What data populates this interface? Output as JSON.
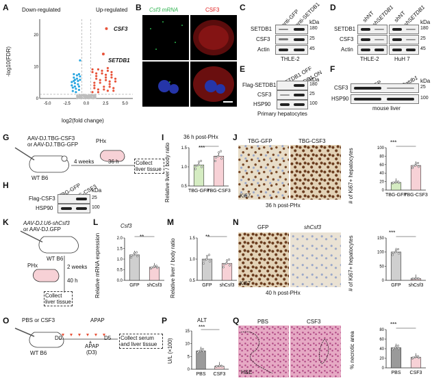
{
  "panels": [
    "A",
    "B",
    "C",
    "D",
    "E",
    "F",
    "G",
    "H",
    "I",
    "J",
    "K",
    "L",
    "M",
    "N",
    "O",
    "P",
    "Q"
  ],
  "A": {
    "down_label": "Down-regulated",
    "up_label": "Up-regulated",
    "ylabel": "-log10(FDR)",
    "xlabel": "log2(fold change)",
    "xticks": [
      "-5.0",
      "-2.5",
      "0.0",
      "2.5",
      "5.0"
    ],
    "yticks": [
      "0",
      "10",
      "20"
    ],
    "hits": [
      "CSF3",
      "SETDB1"
    ],
    "up_color": "#e8533a",
    "down_color": "#2aa6e0",
    "ns_color": "#bdbdbd"
  },
  "B": {
    "green_label": "Csf3 mRNA",
    "red_label": "CSF3",
    "green_color": "#2bb24c",
    "red_color": "#e21d1d"
  },
  "C": {
    "lanes": [
      "lenti-GFP",
      "lenti-SETDB1"
    ],
    "rows": [
      "SETDB1",
      "CSF3",
      "Actin"
    ],
    "kda_header": "kDa",
    "kda": [
      "180",
      "25",
      "45"
    ],
    "cell": "THLE-2"
  },
  "D": {
    "lanes": [
      "shNT",
      "shSETDB1",
      "shNT",
      "shSETDB1"
    ],
    "rows": [
      "SETDB1",
      "CSF3",
      "Actin"
    ],
    "kda_header": "kDa",
    "kda": [
      "180",
      "25",
      "45"
    ],
    "cells": [
      "THLE-2",
      "HuH 7"
    ]
  },
  "E": {
    "lanes": [
      "SETDB1 OFF",
      "SETDB1 ON"
    ],
    "rows": [
      "Flag-SETDB1",
      "CSF3",
      "HSP90"
    ],
    "kda_header": "kDa",
    "kda": [
      "180",
      "25",
      "100"
    ],
    "caption": "Primary hepatocytes"
  },
  "F": {
    "lanes": [
      "GFP",
      "sgSetdb1"
    ],
    "rows": [
      "CSF3",
      "HSP90"
    ],
    "kda_header": "kDa",
    "kda": [
      "25",
      "100"
    ],
    "caption": "mouse liver"
  },
  "G": {
    "virus1": "AAV-DJ.TBG-CSF3",
    "virus2": "or AAV-DJ.TBG-GFP",
    "mouse": "WT B6",
    "phx": "PHx",
    "t1": "4 weeks",
    "t2": "36 h",
    "collect": "Collect liver tissue"
  },
  "H": {
    "lanes": [
      "TBG-GFP",
      "TBG-CSF3"
    ],
    "rows": [
      "Flag-CSF3",
      "HSP90"
    ],
    "kda_header": "kDa",
    "kda": [
      "25",
      "100"
    ]
  },
  "I": {
    "title": "36 h post-PHx",
    "ylabel": "Relative liver / body ratio",
    "sig": "***",
    "chart_data": {
      "type": "bar",
      "categories": [
        "TBG-GFP",
        "TBG-CSF3"
      ],
      "values": [
        1.05,
        1.28
      ],
      "ylim": [
        0.5,
        1.5
      ],
      "yticks": [
        "0.5",
        "1.0",
        "1.5"
      ],
      "colors": [
        "#d5ecc2",
        "#f7d1d6"
      ]
    }
  },
  "J": {
    "left_label": "TBG-GFP",
    "right_label": "TBG-CSF3",
    "stain": "Ki67",
    "caption": "36 h post-PHx",
    "ylabel": "# of Ki67+ hepatocytes",
    "sig": "***",
    "chart_data": {
      "type": "bar",
      "categories": [
        "TBG-GFP",
        "TBG-CSF3"
      ],
      "values": [
        18,
        58
      ],
      "ylim": [
        0,
        100
      ],
      "yticks": [
        "0",
        "20",
        "40",
        "60",
        "80",
        "100"
      ],
      "colors": [
        "#d5ecc2",
        "#f7d1d6"
      ]
    }
  },
  "K": {
    "virus1": "AAV-DJ.U6-shCsf3",
    "virus2": "or AAV-DJ.GFP",
    "mouse": "WT B6",
    "phx": "PHx",
    "t1": "2 weeks",
    "t2": "40 h",
    "collect": "Collect liver tissue"
  },
  "L": {
    "title": "Csf3",
    "ylabel": "Relative mRNA expression",
    "sig": "**",
    "chart_data": {
      "type": "bar",
      "categories": [
        "GFP",
        "shCsf3"
      ],
      "values": [
        1.2,
        0.62
      ],
      "ylim": [
        0,
        2.0
      ],
      "yticks": [
        "0.0",
        "0.5",
        "1.0",
        "1.5",
        "2.0"
      ],
      "colors": [
        "#cfcfcf",
        "#f7d1d6"
      ]
    }
  },
  "M": {
    "ylabel": "Relative liver / body ratio",
    "sig": "**",
    "chart_data": {
      "type": "bar",
      "categories": [
        "GFP",
        "shCsf3"
      ],
      "values": [
        1.0,
        0.9
      ],
      "ylim": [
        0.5,
        1.5
      ],
      "yticks": [
        "0.5",
        "1.0",
        "1.5"
      ],
      "colors": [
        "#cfcfcf",
        "#f7d1d6"
      ]
    }
  },
  "N": {
    "left_label": "GFP",
    "right_label": "shCsf3",
    "stain": "Ki67",
    "caption": "40 h post-PHx",
    "ylabel": "# of Ki67+ hepatocytes",
    "sig": "***",
    "chart_data": {
      "type": "bar",
      "categories": [
        "GFP",
        "shCsf3"
      ],
      "values": [
        100,
        6
      ],
      "ylim": [
        0,
        150
      ],
      "yticks": [
        "0",
        "50",
        "100",
        "150"
      ],
      "colors": [
        "#cfcfcf",
        "#f7d1d6"
      ]
    }
  },
  "O": {
    "legend1": "PBS or CSF3",
    "legend2": "APAP",
    "mouse": "WT B6",
    "d0": "D0",
    "d5": "D5",
    "apap": "APAP",
    "d3": "(D3)",
    "collect": "Collect serum and liver tissue"
  },
  "P": {
    "title": "ALT",
    "ylabel": "U/L (×100)",
    "sig": "***",
    "chart_data": {
      "type": "bar",
      "categories": [
        "PBS",
        "CSF3"
      ],
      "values": [
        7.2,
        1.2
      ],
      "ylim": [
        0,
        15
      ],
      "yticks": [
        "0",
        "5",
        "10",
        "15"
      ],
      "colors": [
        "#9a9a9a",
        "#f7d1d6"
      ]
    }
  },
  "Q": {
    "left_label": "PBS",
    "right_label": "CSF3",
    "stain": "H&E",
    "ylabel": "% necrotic area",
    "sig": "***",
    "chart_data": {
      "type": "bar",
      "categories": [
        "PBS",
        "CSF3"
      ],
      "values": [
        42,
        22
      ],
      "ylim": [
        0,
        80
      ],
      "yticks": [
        "0",
        "20",
        "40",
        "60",
        "80"
      ],
      "colors": [
        "#9a9a9a",
        "#f7d1d6"
      ]
    }
  }
}
